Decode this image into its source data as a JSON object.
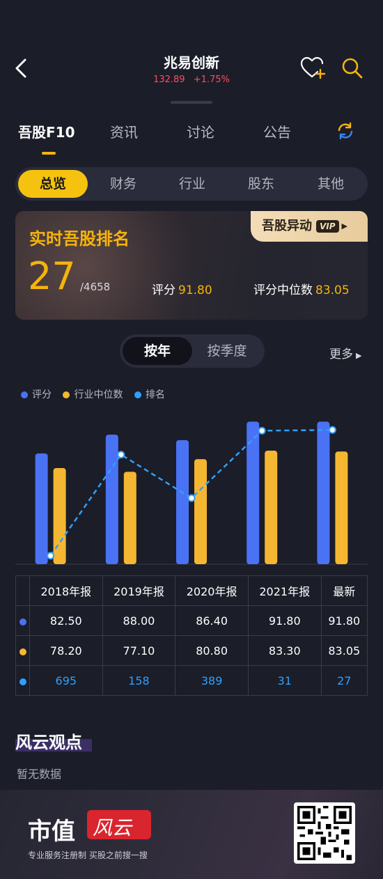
{
  "header": {
    "title": "兆易创新",
    "price": "132.89",
    "change": "+1.75%"
  },
  "top_tabs": [
    "吾股F10",
    "资讯",
    "讨论",
    "公告"
  ],
  "sub_tabs": [
    "总览",
    "财务",
    "行业",
    "股东",
    "其他"
  ],
  "rank_card": {
    "title": "实时吾股排名",
    "rank": "27",
    "total": "/4658",
    "score_label": "评分",
    "score_value": "91.80",
    "median_label": "评分中位数",
    "median_value": "83.05",
    "vip_label": "吾股异动",
    "vip_badge": "VIP"
  },
  "period": {
    "options": [
      "按年",
      "按季度"
    ],
    "selected": "按年",
    "more": "更多"
  },
  "chart_data": {
    "type": "bar",
    "categories": [
      "2018年报",
      "2019年报",
      "2020年报",
      "2021年报",
      "最新"
    ],
    "series": [
      {
        "name": "评分",
        "type": "bar",
        "color": "#4a72f5",
        "values": [
          82.5,
          88.0,
          86.4,
          91.8,
          91.8
        ]
      },
      {
        "name": "行业中位数",
        "type": "bar",
        "color": "#f5b731",
        "values": [
          78.2,
          77.1,
          80.8,
          83.3,
          83.05
        ]
      },
      {
        "name": "排名",
        "type": "line",
        "color": "#2fa0ff",
        "values": [
          695,
          158,
          389,
          31,
          27
        ]
      }
    ],
    "legend_position": "top-left"
  },
  "table": {
    "headers": [
      "2018年报",
      "2019年报",
      "2020年报",
      "2021年报",
      "最新"
    ],
    "rows": [
      {
        "color": "#4a72f5",
        "values": [
          "82.50",
          "88.00",
          "86.40",
          "91.80",
          "91.80"
        ]
      },
      {
        "color": "#f5b731",
        "values": [
          "78.20",
          "77.10",
          "80.80",
          "83.30",
          "83.05"
        ]
      },
      {
        "color": "#2fa0ff",
        "values": [
          "695",
          "158",
          "389",
          "31",
          "27"
        ]
      }
    ]
  },
  "views": {
    "title": "风云观点",
    "empty": "暂无数据"
  },
  "footer": {
    "brand": "市值",
    "logo_text": "风云",
    "slogan": "专业服务注册制 买股之前搜一搜"
  }
}
